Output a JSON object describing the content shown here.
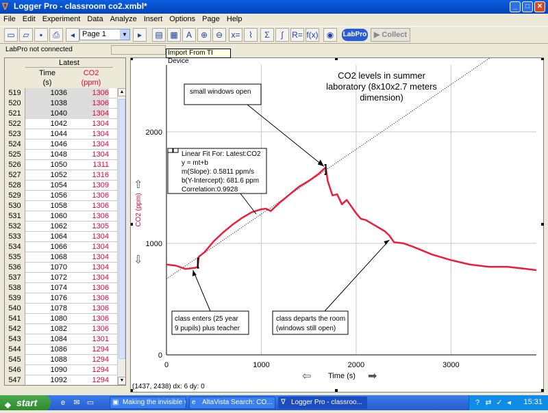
{
  "window": {
    "title": "Logger Pro - classroom co2.xmbl*",
    "minimize": "_",
    "maximize": "□",
    "close": "✕"
  },
  "menu": [
    "File",
    "Edit",
    "Experiment",
    "Data",
    "Analyze",
    "Insert",
    "Options",
    "Page",
    "Help"
  ],
  "toolbar": {
    "page_select": "Page 1",
    "labpro_label": "LabPro",
    "collect_label": "Collect",
    "tooltip": "Import From TI Device"
  },
  "status": {
    "text": "LabPro not connected"
  },
  "table": {
    "group_header": "Latest",
    "col1_name": "Time",
    "col1_unit": "(s)",
    "col2_name": "CO2",
    "col2_unit": "(ppm)",
    "rows": [
      {
        "n": "519",
        "t": "1036",
        "c": "1306"
      },
      {
        "n": "520",
        "t": "1038",
        "c": "1306"
      },
      {
        "n": "521",
        "t": "1040",
        "c": "1304"
      },
      {
        "n": "522",
        "t": "1042",
        "c": "1304"
      },
      {
        "n": "523",
        "t": "1044",
        "c": "1304"
      },
      {
        "n": "524",
        "t": "1046",
        "c": "1304"
      },
      {
        "n": "525",
        "t": "1048",
        "c": "1304"
      },
      {
        "n": "526",
        "t": "1050",
        "c": "1311"
      },
      {
        "n": "527",
        "t": "1052",
        "c": "1316"
      },
      {
        "n": "528",
        "t": "1054",
        "c": "1309"
      },
      {
        "n": "529",
        "t": "1056",
        "c": "1306"
      },
      {
        "n": "530",
        "t": "1058",
        "c": "1306"
      },
      {
        "n": "531",
        "t": "1060",
        "c": "1306"
      },
      {
        "n": "532",
        "t": "1062",
        "c": "1305"
      },
      {
        "n": "533",
        "t": "1064",
        "c": "1304"
      },
      {
        "n": "534",
        "t": "1066",
        "c": "1304"
      },
      {
        "n": "535",
        "t": "1068",
        "c": "1304"
      },
      {
        "n": "536",
        "t": "1070",
        "c": "1304"
      },
      {
        "n": "537",
        "t": "1072",
        "c": "1304"
      },
      {
        "n": "538",
        "t": "1074",
        "c": "1306"
      },
      {
        "n": "539",
        "t": "1076",
        "c": "1306"
      },
      {
        "n": "540",
        "t": "1078",
        "c": "1306"
      },
      {
        "n": "541",
        "t": "1080",
        "c": "1306"
      },
      {
        "n": "542",
        "t": "1082",
        "c": "1306"
      },
      {
        "n": "543",
        "t": "1084",
        "c": "1301"
      },
      {
        "n": "544",
        "t": "1086",
        "c": "1294"
      },
      {
        "n": "545",
        "t": "1088",
        "c": "1294"
      },
      {
        "n": "546",
        "t": "1090",
        "c": "1294"
      },
      {
        "n": "547",
        "t": "1092",
        "c": "1294"
      }
    ]
  },
  "graph": {
    "title_line1": "CO2 levels in summer",
    "title_line2": "laboratory (8x10x2.7 meters",
    "title_line3": "dimension)",
    "fit_box": {
      "line1": "Linear Fit For:  Latest:CO2",
      "line2": "y = mt+b",
      "line3": "m(Slope): 0.5811 ppm/s",
      "line4": "b(Y-Intercept): 681.6 ppm",
      "line5": "Correlation:0.9928"
    },
    "annotations": {
      "windows": "small windows open",
      "enters_line1": "class enters (25 year",
      "enters_line2": "9 pupils) plus teacher",
      "departs_line1": "class departs the room",
      "departs_line2": "(windows still open)"
    },
    "coords_readout": "(1437, 2438) dx: 6 dy: 0"
  },
  "chart_data": {
    "type": "line",
    "title": "CO2 levels in summer laboratory (8x10x2.7 meters dimension)",
    "xlabel": "Time (s)",
    "ylabel": "CO2 (ppm)",
    "xlim": [
      0,
      3900
    ],
    "ylim": [
      0,
      2600
    ],
    "x_ticks": [
      0,
      1000,
      2000,
      3000
    ],
    "y_ticks": [
      0,
      1000,
      2000
    ],
    "grid": true,
    "series": [
      {
        "color": "#ee1c3c",
        "x": [
          0,
          100,
          200,
          300,
          330,
          340,
          400,
          500,
          600,
          700,
          800,
          900,
          1000,
          1050,
          1100,
          1200,
          1300,
          1400,
          1500,
          1600,
          1650,
          1680,
          1700,
          1750,
          1800,
          1850,
          1900,
          2000,
          2050,
          2100,
          2200,
          2300,
          2350,
          2400,
          2500,
          2600,
          2800,
          3000,
          3200,
          3400,
          3600,
          3800,
          3900
        ],
        "y": [
          810,
          800,
          770,
          780,
          790,
          880,
          920,
          1020,
          1100,
          1170,
          1230,
          1280,
          1306,
          1311,
          1290,
          1370,
          1440,
          1510,
          1560,
          1620,
          1660,
          1680,
          1560,
          1430,
          1440,
          1350,
          1390,
          1270,
          1220,
          1210,
          1160,
          1110,
          1070,
          1010,
          1000,
          970,
          900,
          850,
          810,
          790,
          790,
          770,
          760
        ]
      },
      {
        "name": "Linear Fit",
        "color": "#000000",
        "x": [
          0,
          3470
        ],
        "y": [
          681.6,
          2698
        ]
      }
    ]
  },
  "taskbar": {
    "start": "start",
    "tasks": [
      "Making the invisible vi...",
      "AltaVista Search: CO...",
      "Logger Pro - classroo..."
    ],
    "clock": "15:31"
  }
}
